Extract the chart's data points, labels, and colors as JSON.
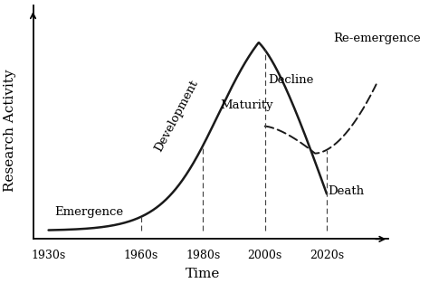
{
  "title": "",
  "xlabel": "Time",
  "ylabel": "Research Activity",
  "x_ticks": [
    "1930s",
    "1960s",
    "1980s",
    "2000s",
    "2020s"
  ],
  "x_tick_positions": [
    0,
    3,
    5,
    7,
    9
  ],
  "vline_positions": [
    3,
    5,
    7,
    9
  ],
  "background_color": "#ffffff",
  "line_color": "#1a1a1a",
  "vline_color": "#444444",
  "xlabel_fontsize": 11,
  "ylabel_fontsize": 11,
  "label_fontsize": 9.5
}
